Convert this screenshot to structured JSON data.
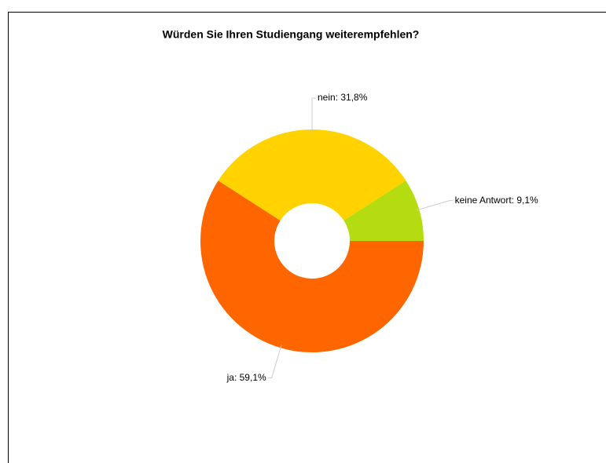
{
  "chart_data": {
    "type": "donut",
    "title": "Würden Sie Ihren Studiengang weiterempfehlen?",
    "values": [
      59.1,
      31.8,
      9.1
    ],
    "value_labels": [
      "ja: 59,1%",
      "nein: 31,8%",
      "keine Antwort: 9,1%"
    ],
    "colors": [
      "#ff6600",
      "#ffd200",
      "#b5dc10"
    ]
  }
}
